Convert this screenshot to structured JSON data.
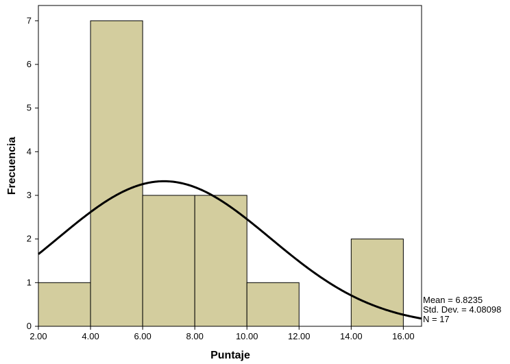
{
  "chart_data": {
    "type": "bar",
    "subtype": "histogram",
    "xlabel": "Puntaje",
    "ylabel": "Frecuencia",
    "bins": [
      {
        "x0": 2,
        "x1": 4,
        "count": 1
      },
      {
        "x0": 4,
        "x1": 6,
        "count": 7
      },
      {
        "x0": 6,
        "x1": 8,
        "count": 3
      },
      {
        "x0": 8,
        "x1": 10,
        "count": 3
      },
      {
        "x0": 10,
        "x1": 12,
        "count": 1
      },
      {
        "x0": 12,
        "x1": 14,
        "count": 0
      },
      {
        "x0": 14,
        "x1": 16,
        "count": 2
      }
    ],
    "xticks": [
      "2.00",
      "4.00",
      "6.00",
      "8.00",
      "10.00",
      "12.00",
      "14.00",
      "16.00"
    ],
    "yticks": [
      "0",
      "1",
      "2",
      "3",
      "4",
      "5",
      "6",
      "7"
    ],
    "xlim": [
      2,
      16.7
    ],
    "ylim": [
      0,
      7.35
    ],
    "normal_curve": {
      "mean": 6.8235,
      "std": 4.08098,
      "n": 17,
      "bin_width": 2
    },
    "stats": [
      "Mean = 6.8235",
      "Std. Dev. = 4.08098",
      "N = 17"
    ],
    "colors": {
      "bar_fill": "#d3cd9e",
      "bar_stroke": "#000000",
      "curve": "#000000"
    },
    "grid": false
  }
}
